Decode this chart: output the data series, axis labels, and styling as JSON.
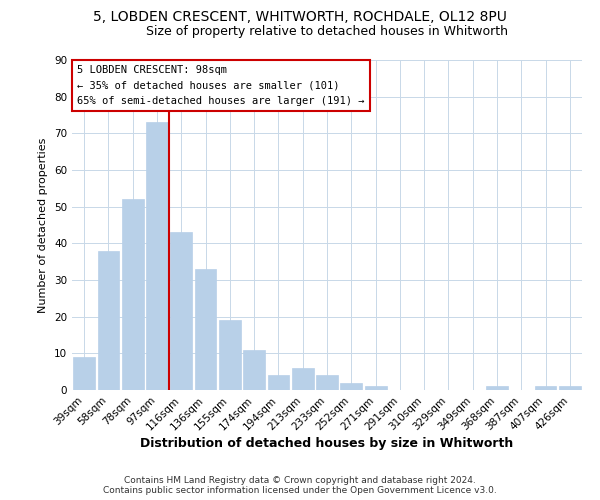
{
  "title": "5, LOBDEN CRESCENT, WHITWORTH, ROCHDALE, OL12 8PU",
  "subtitle": "Size of property relative to detached houses in Whitworth",
  "xlabel": "Distribution of detached houses by size in Whitworth",
  "ylabel": "Number of detached properties",
  "categories": [
    "39sqm",
    "58sqm",
    "78sqm",
    "97sqm",
    "116sqm",
    "136sqm",
    "155sqm",
    "174sqm",
    "194sqm",
    "213sqm",
    "233sqm",
    "252sqm",
    "271sqm",
    "291sqm",
    "310sqm",
    "329sqm",
    "349sqm",
    "368sqm",
    "387sqm",
    "407sqm",
    "426sqm"
  ],
  "values": [
    9,
    38,
    52,
    73,
    43,
    33,
    19,
    11,
    4,
    6,
    4,
    2,
    1,
    0,
    0,
    0,
    0,
    1,
    0,
    1,
    1
  ],
  "bar_color": "#b8d0e8",
  "red_line_color": "#cc0000",
  "red_line_x": 3.5,
  "ylim": [
    0,
    90
  ],
  "yticks": [
    0,
    10,
    20,
    30,
    40,
    50,
    60,
    70,
    80,
    90
  ],
  "annotation_title": "5 LOBDEN CRESCENT: 98sqm",
  "annotation_line1": "← 35% of detached houses are smaller (101)",
  "annotation_line2": "65% of semi-detached houses are larger (191) →",
  "annotation_box_color": "#ffffff",
  "annotation_box_edge": "#cc0000",
  "footer_line1": "Contains HM Land Registry data © Crown copyright and database right 2024.",
  "footer_line2": "Contains public sector information licensed under the Open Government Licence v3.0.",
  "background_color": "#ffffff",
  "grid_color": "#c8d8e8",
  "title_fontsize": 10,
  "subtitle_fontsize": 9,
  "xlabel_fontsize": 9,
  "ylabel_fontsize": 8,
  "tick_fontsize": 7.5,
  "footer_fontsize": 6.5
}
